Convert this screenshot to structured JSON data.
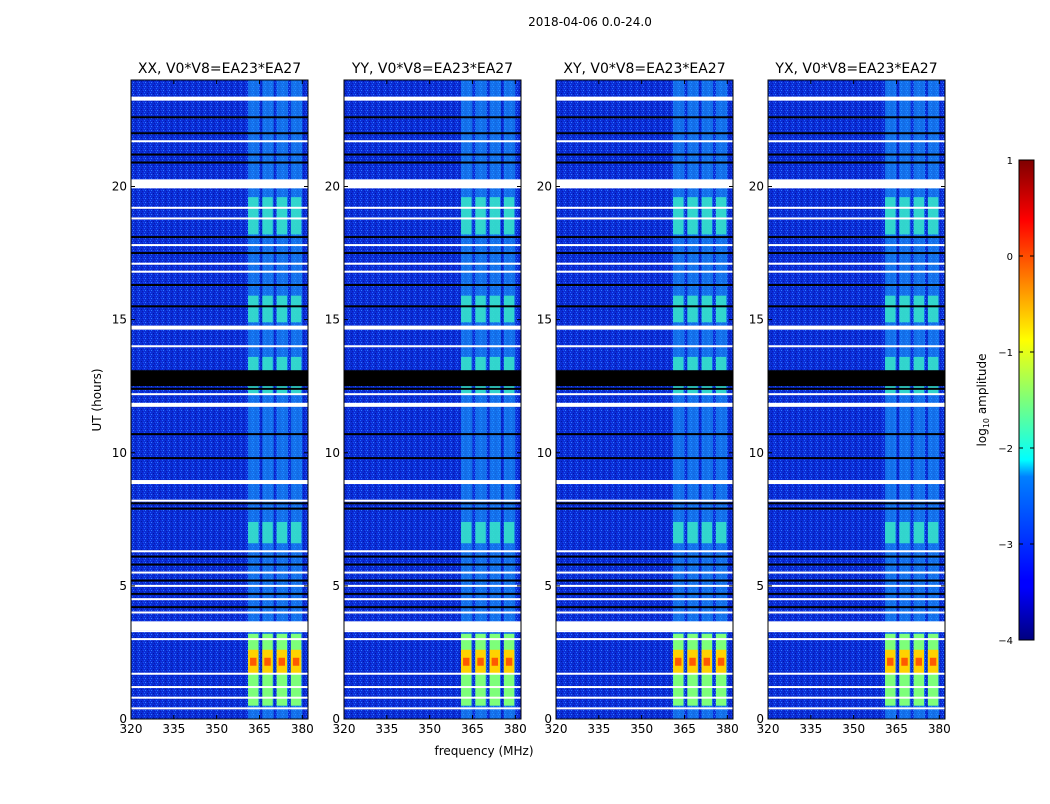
{
  "chart_data": {
    "type": "heatmap",
    "suptitle": "2018-04-06 0.0-24.0",
    "xlabel": "frequency (MHz)",
    "ylabel": "UT (hours)",
    "xlim": [
      320,
      382
    ],
    "ylim": [
      0,
      24
    ],
    "x_ticks": [
      "320",
      "335",
      "350",
      "365",
      "380"
    ],
    "y_ticks": [
      "0",
      "5",
      "10",
      "15",
      "20"
    ],
    "panels": [
      {
        "title": "XX, V0*V8=EA23*EA27"
      },
      {
        "title": "YY, V0*V8=EA23*EA27"
      },
      {
        "title": "XY, V0*V8=EA23*EA27"
      },
      {
        "title": "YX, V0*V8=EA23*EA27"
      }
    ],
    "colorbar": {
      "label_prefix": "log",
      "label_sub": "10",
      "label_suffix": " amplitude",
      "range": [
        -4,
        1
      ],
      "ticks": [
        "1",
        "0",
        "−1",
        "−2",
        "−3",
        "−4"
      ],
      "colormap": "jet"
    },
    "rfi_band_freqs_mhz": [
      363,
      368,
      373,
      378
    ],
    "flagged_hours_white": [
      23.3,
      21.7,
      20.1,
      19.2,
      18.8,
      17.8,
      17.1,
      16.8,
      14.7,
      14.0,
      12.2,
      11.8,
      8.9,
      8.2,
      6.3,
      5.5,
      5.0,
      4.5,
      4.0,
      3.5,
      3.3,
      3.0,
      1.7,
      1.2,
      0.8,
      0.4
    ],
    "flagged_hours_black": [
      22.6,
      22.0,
      21.2,
      20.9,
      18.1,
      17.5,
      16.3,
      15.5,
      13.0,
      12.8,
      12.6,
      12.4,
      10.7,
      9.8,
      8.1,
      7.9,
      6.1,
      5.8,
      5.2,
      4.7,
      4.2
    ]
  }
}
